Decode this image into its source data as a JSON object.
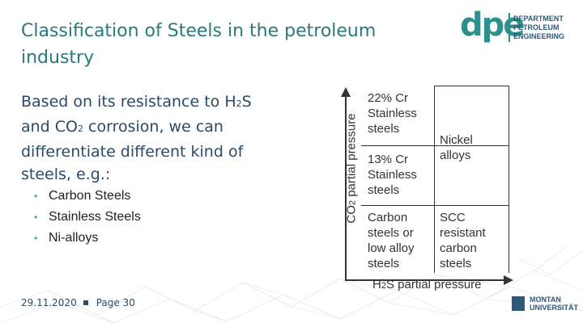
{
  "title": "Classification of Steels in the petroleum industry",
  "logo": {
    "mark": "dpe",
    "lines": [
      "DEPARTMENT",
      "PETROLEUM",
      "ENGINEERING"
    ]
  },
  "intro": {
    "part1": "Based on its resistance to H",
    "sub1": "2",
    "part2": "S and CO",
    "sub2": "2",
    "part3": " corrosion, we can differentiate different kind of steels, e.g.:"
  },
  "bullets": [
    "Carbon Steels",
    "Stainless Steels",
    "Ni-alloys"
  ],
  "footer": {
    "date": "29.11.2020",
    "page": "Page 30"
  },
  "footer_logo": {
    "line1": "MONTAN",
    "line2": "UNIVERSITÄT"
  },
  "diagram": {
    "y_axis": {
      "pre": "CO",
      "sub": "2",
      "post": " partial pressure"
    },
    "x_axis": {
      "pre": "H",
      "sub": "2",
      "post": "S partial pressure"
    },
    "cells": {
      "top_left": [
        "22% Cr",
        "Stainless",
        "steels"
      ],
      "mid_left": [
        "13% Cr",
        "Stainless",
        "steels"
      ],
      "right_top": [
        "Nickel",
        "alloys"
      ],
      "bottom_left": [
        "Carbon",
        "steels or",
        "low alloy",
        "steels"
      ],
      "bottom_right": [
        "SCC",
        "resistant",
        "carbon",
        "steels"
      ]
    }
  }
}
